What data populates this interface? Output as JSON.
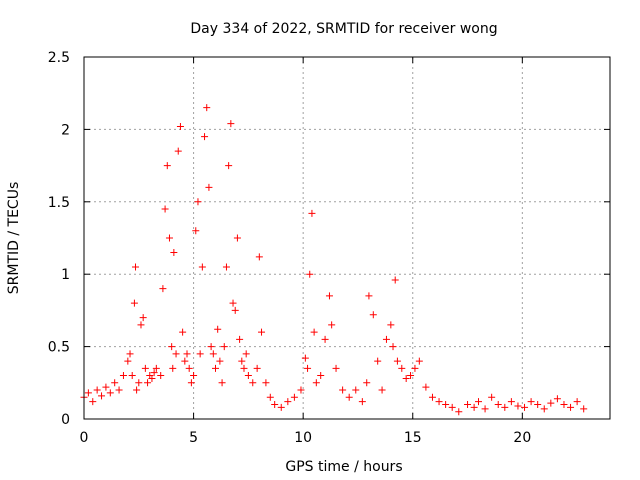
{
  "chart_data": {
    "type": "scatter",
    "title": "Day 334 of 2022, SRMTID for receiver wong",
    "xlabel": "GPS time / hours",
    "ylabel": "SRMTID / TECUs",
    "xlim": [
      0,
      24
    ],
    "ylim": [
      0,
      2.5
    ],
    "xticks": [
      0,
      5,
      10,
      15,
      20
    ],
    "xtick_labels": [
      "0",
      "5",
      "10",
      "15",
      "20"
    ],
    "yticks": [
      0,
      0.5,
      1,
      1.5,
      2,
      2.5
    ],
    "ytick_labels": [
      "0",
      "0.5",
      "1",
      "1.5",
      "2",
      "2.5"
    ],
    "grid": true,
    "marker": "+",
    "color": "#ff0000",
    "series": [
      {
        "name": "SRMTID",
        "x": [
          0.0,
          0.2,
          0.4,
          0.6,
          0.8,
          1.0,
          1.2,
          1.4,
          1.6,
          1.8,
          2.0,
          2.1,
          2.2,
          2.3,
          2.35,
          2.4,
          2.5,
          2.6,
          2.7,
          2.8,
          2.9,
          3.0,
          3.1,
          3.2,
          3.3,
          3.5,
          3.6,
          3.7,
          3.8,
          3.9,
          4.0,
          4.05,
          4.1,
          4.2,
          4.3,
          4.4,
          4.5,
          4.6,
          4.7,
          4.8,
          4.9,
          5.0,
          5.1,
          5.2,
          5.3,
          5.4,
          5.5,
          5.6,
          5.7,
          5.8,
          5.9,
          6.0,
          6.1,
          6.2,
          6.3,
          6.4,
          6.5,
          6.6,
          6.7,
          6.8,
          6.9,
          7.0,
          7.1,
          7.2,
          7.3,
          7.4,
          7.5,
          7.7,
          7.9,
          8.0,
          8.1,
          8.3,
          8.5,
          8.7,
          9.0,
          9.3,
          9.6,
          9.9,
          10.1,
          10.2,
          10.3,
          10.4,
          10.5,
          10.6,
          10.8,
          11.0,
          11.2,
          11.3,
          11.5,
          11.8,
          12.1,
          12.4,
          12.7,
          12.9,
          13.0,
          13.2,
          13.4,
          13.6,
          13.8,
          14.0,
          14.1,
          14.2,
          14.3,
          14.5,
          14.7,
          14.9,
          15.1,
          15.3,
          15.6,
          15.9,
          16.2,
          16.5,
          16.8,
          17.1,
          17.5,
          17.8,
          18.0,
          18.3,
          18.6,
          18.9,
          19.2,
          19.5,
          19.8,
          20.1,
          20.4,
          20.7,
          21.0,
          21.3,
          21.6,
          21.9,
          22.2,
          22.5,
          22.8
        ],
        "y": [
          0.15,
          0.18,
          0.12,
          0.2,
          0.16,
          0.22,
          0.18,
          0.25,
          0.2,
          0.3,
          0.4,
          0.45,
          0.3,
          0.8,
          1.05,
          0.2,
          0.25,
          0.65,
          0.7,
          0.35,
          0.25,
          0.3,
          0.28,
          0.32,
          0.35,
          0.3,
          0.9,
          1.45,
          1.75,
          1.25,
          0.5,
          0.35,
          1.15,
          0.45,
          1.85,
          2.02,
          0.6,
          0.4,
          0.45,
          0.35,
          0.25,
          0.3,
          1.3,
          1.5,
          0.45,
          1.05,
          1.95,
          2.15,
          1.6,
          0.5,
          0.45,
          0.35,
          0.62,
          0.4,
          0.25,
          0.5,
          1.05,
          1.75,
          2.04,
          0.8,
          0.75,
          1.25,
          0.55,
          0.4,
          0.35,
          0.45,
          0.3,
          0.25,
          0.35,
          1.12,
          0.6,
          0.25,
          0.15,
          0.1,
          0.08,
          0.12,
          0.15,
          0.2,
          0.42,
          0.35,
          1.0,
          1.42,
          0.6,
          0.25,
          0.3,
          0.55,
          0.85,
          0.65,
          0.35,
          0.2,
          0.15,
          0.2,
          0.12,
          0.25,
          0.85,
          0.72,
          0.4,
          0.2,
          0.55,
          0.65,
          0.5,
          0.96,
          0.4,
          0.35,
          0.28,
          0.3,
          0.35,
          0.4,
          0.22,
          0.15,
          0.12,
          0.1,
          0.08,
          0.05,
          0.1,
          0.08,
          0.12,
          0.07,
          0.15,
          0.1,
          0.08,
          0.12,
          0.09,
          0.08,
          0.12,
          0.1,
          0.07,
          0.11,
          0.14,
          0.1,
          0.08,
          0.12,
          0.07
        ]
      }
    ]
  }
}
